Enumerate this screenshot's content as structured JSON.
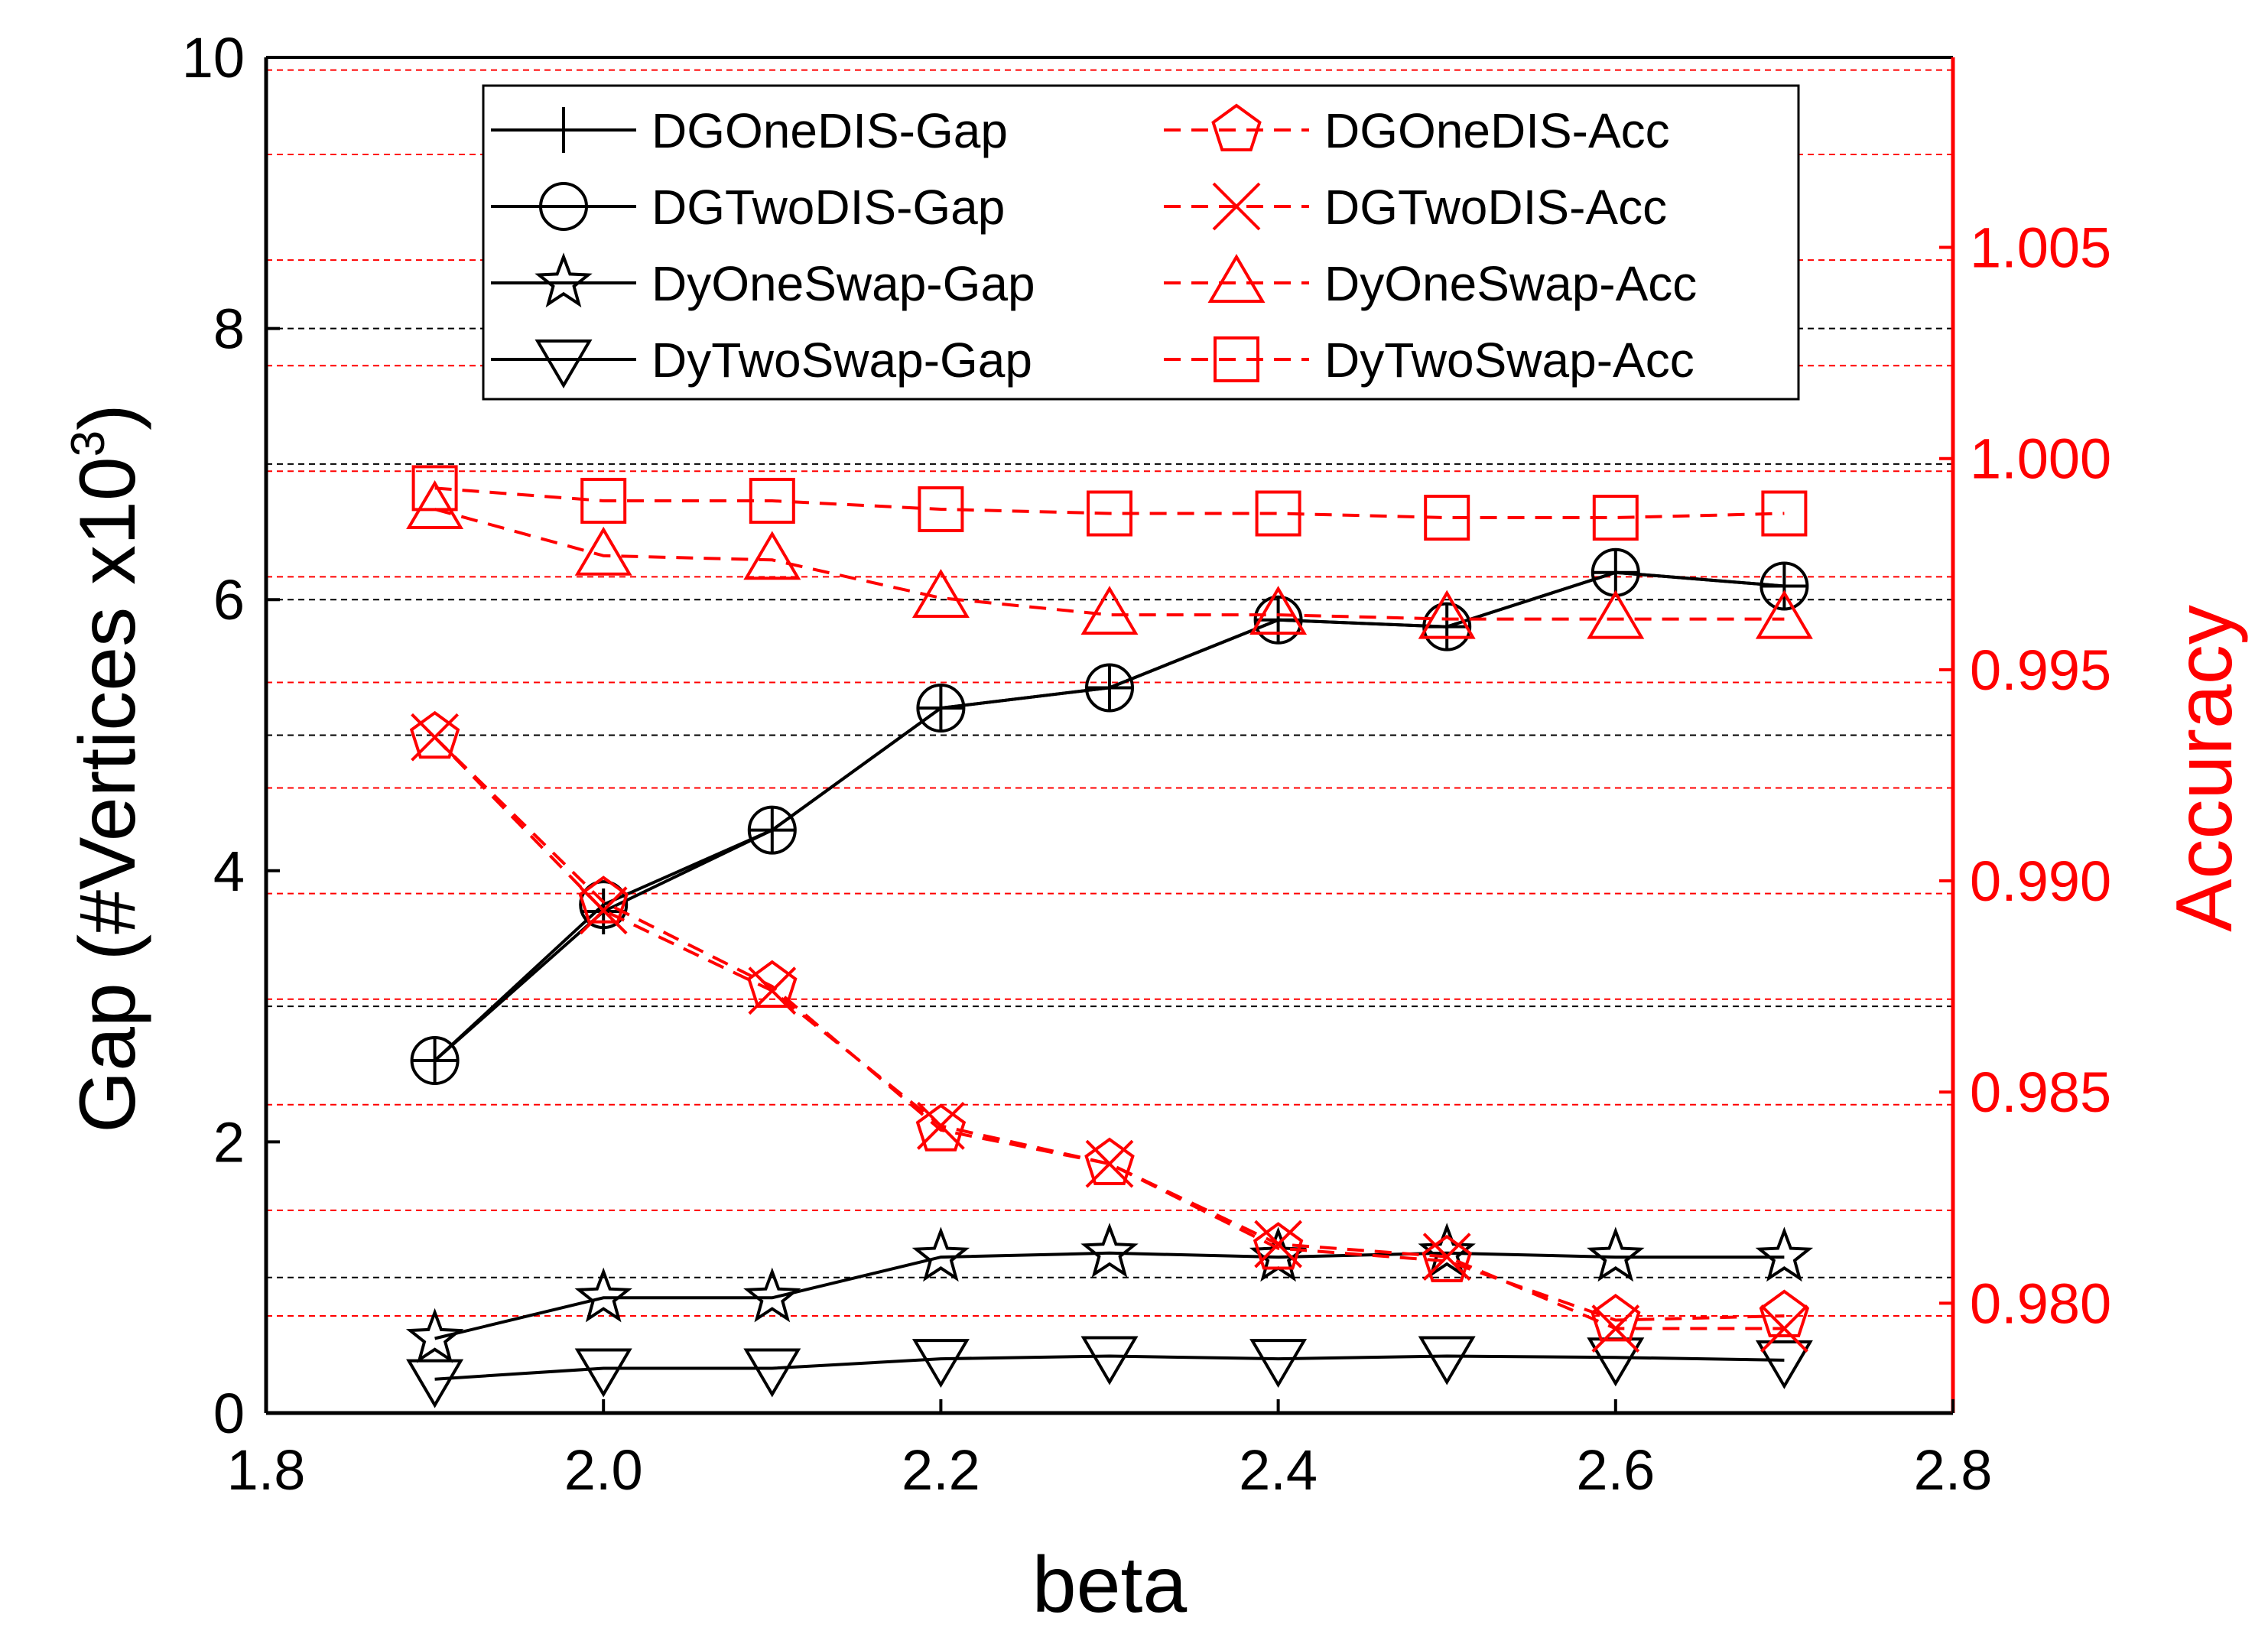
{
  "chart_data": {
    "type": "line",
    "title": "",
    "xlabel": "beta",
    "ylabel_left": "Gap (#Vertices x10",
    "ylabel_left_exp": "3",
    "ylabel_left_close": ")",
    "ylabel_right": "Accuracy",
    "xlim": [
      1.8,
      2.8
    ],
    "ylim_left": [
      0,
      10
    ],
    "ylim_right": [
      0.9774,
      1.0095
    ],
    "x_ticks": [
      "1.8",
      "2.0",
      "2.2",
      "2.4",
      "2.6",
      "2.8"
    ],
    "y_left_ticks": [
      "0",
      "2",
      "4",
      "6",
      "8",
      "10"
    ],
    "y_right_ticks": [
      "0.980",
      "0.985",
      "0.990",
      "0.995",
      "1.000",
      "1.005"
    ],
    "x": [
      1.9,
      2.0,
      2.1,
      2.2,
      2.3,
      2.4,
      2.5,
      2.6,
      2.7
    ],
    "series": [
      {
        "name": "DGOneDIS-Gap",
        "axis": "left",
        "color": "#000000",
        "marker": "plus",
        "dashed": false,
        "values": [
          2.6,
          3.7,
          4.3,
          5.2,
          5.35,
          5.85,
          5.8,
          6.2,
          6.1
        ]
      },
      {
        "name": "DGTwoDIS-Gap",
        "axis": "left",
        "color": "#000000",
        "marker": "circle",
        "dashed": false,
        "values": [
          2.6,
          3.75,
          4.3,
          5.2,
          5.35,
          5.85,
          5.8,
          6.2,
          6.1
        ]
      },
      {
        "name": "DyOneSwap-Gap",
        "axis": "left",
        "color": "#000000",
        "marker": "star",
        "dashed": false,
        "values": [
          0.55,
          0.85,
          0.85,
          1.15,
          1.18,
          1.15,
          1.18,
          1.15,
          1.15
        ]
      },
      {
        "name": "DyTwoSwap-Gap",
        "axis": "left",
        "color": "#000000",
        "marker": "triangle-down",
        "dashed": false,
        "values": [
          0.25,
          0.33,
          0.33,
          0.4,
          0.42,
          0.4,
          0.42,
          0.41,
          0.39
        ]
      },
      {
        "name": "DGOneDIS-Acc",
        "axis": "right",
        "color": "#ff0000",
        "marker": "pentagon",
        "dashed": true,
        "values": [
          0.9934,
          0.9895,
          0.9875,
          0.9841,
          0.9833,
          0.9813,
          0.981,
          0.9796,
          0.9797
        ]
      },
      {
        "name": "DGTwoDIS-Acc",
        "axis": "right",
        "color": "#ff0000",
        "marker": "x",
        "dashed": true,
        "values": [
          0.9934,
          0.9893,
          0.9874,
          0.9842,
          0.9833,
          0.9814,
          0.9811,
          0.9794,
          0.9794
        ]
      },
      {
        "name": "DyOneSwap-Acc",
        "axis": "right",
        "color": "#ff0000",
        "marker": "triangle-up",
        "dashed": true,
        "values": [
          0.9988,
          0.9977,
          0.9976,
          0.9967,
          0.9963,
          0.9963,
          0.9962,
          0.9962,
          0.9962
        ]
      },
      {
        "name": "DyTwoSwap-Acc",
        "axis": "right",
        "color": "#ff0000",
        "marker": "square",
        "dashed": true,
        "values": [
          0.9993,
          0.999,
          0.999,
          0.9988,
          0.9987,
          0.9987,
          0.9986,
          0.9986,
          0.9987
        ]
      }
    ],
    "legend": {
      "location": "top",
      "columns": 2
    },
    "grid_left": [
      1,
      3,
      5,
      6,
      7,
      8
    ],
    "grid_right": [
      0.9797,
      0.9822,
      0.9847,
      0.9872,
      0.9897,
      0.9922,
      0.9947,
      0.9972,
      0.9997,
      1.0022,
      1.0047,
      1.0072,
      1.0092
    ]
  }
}
